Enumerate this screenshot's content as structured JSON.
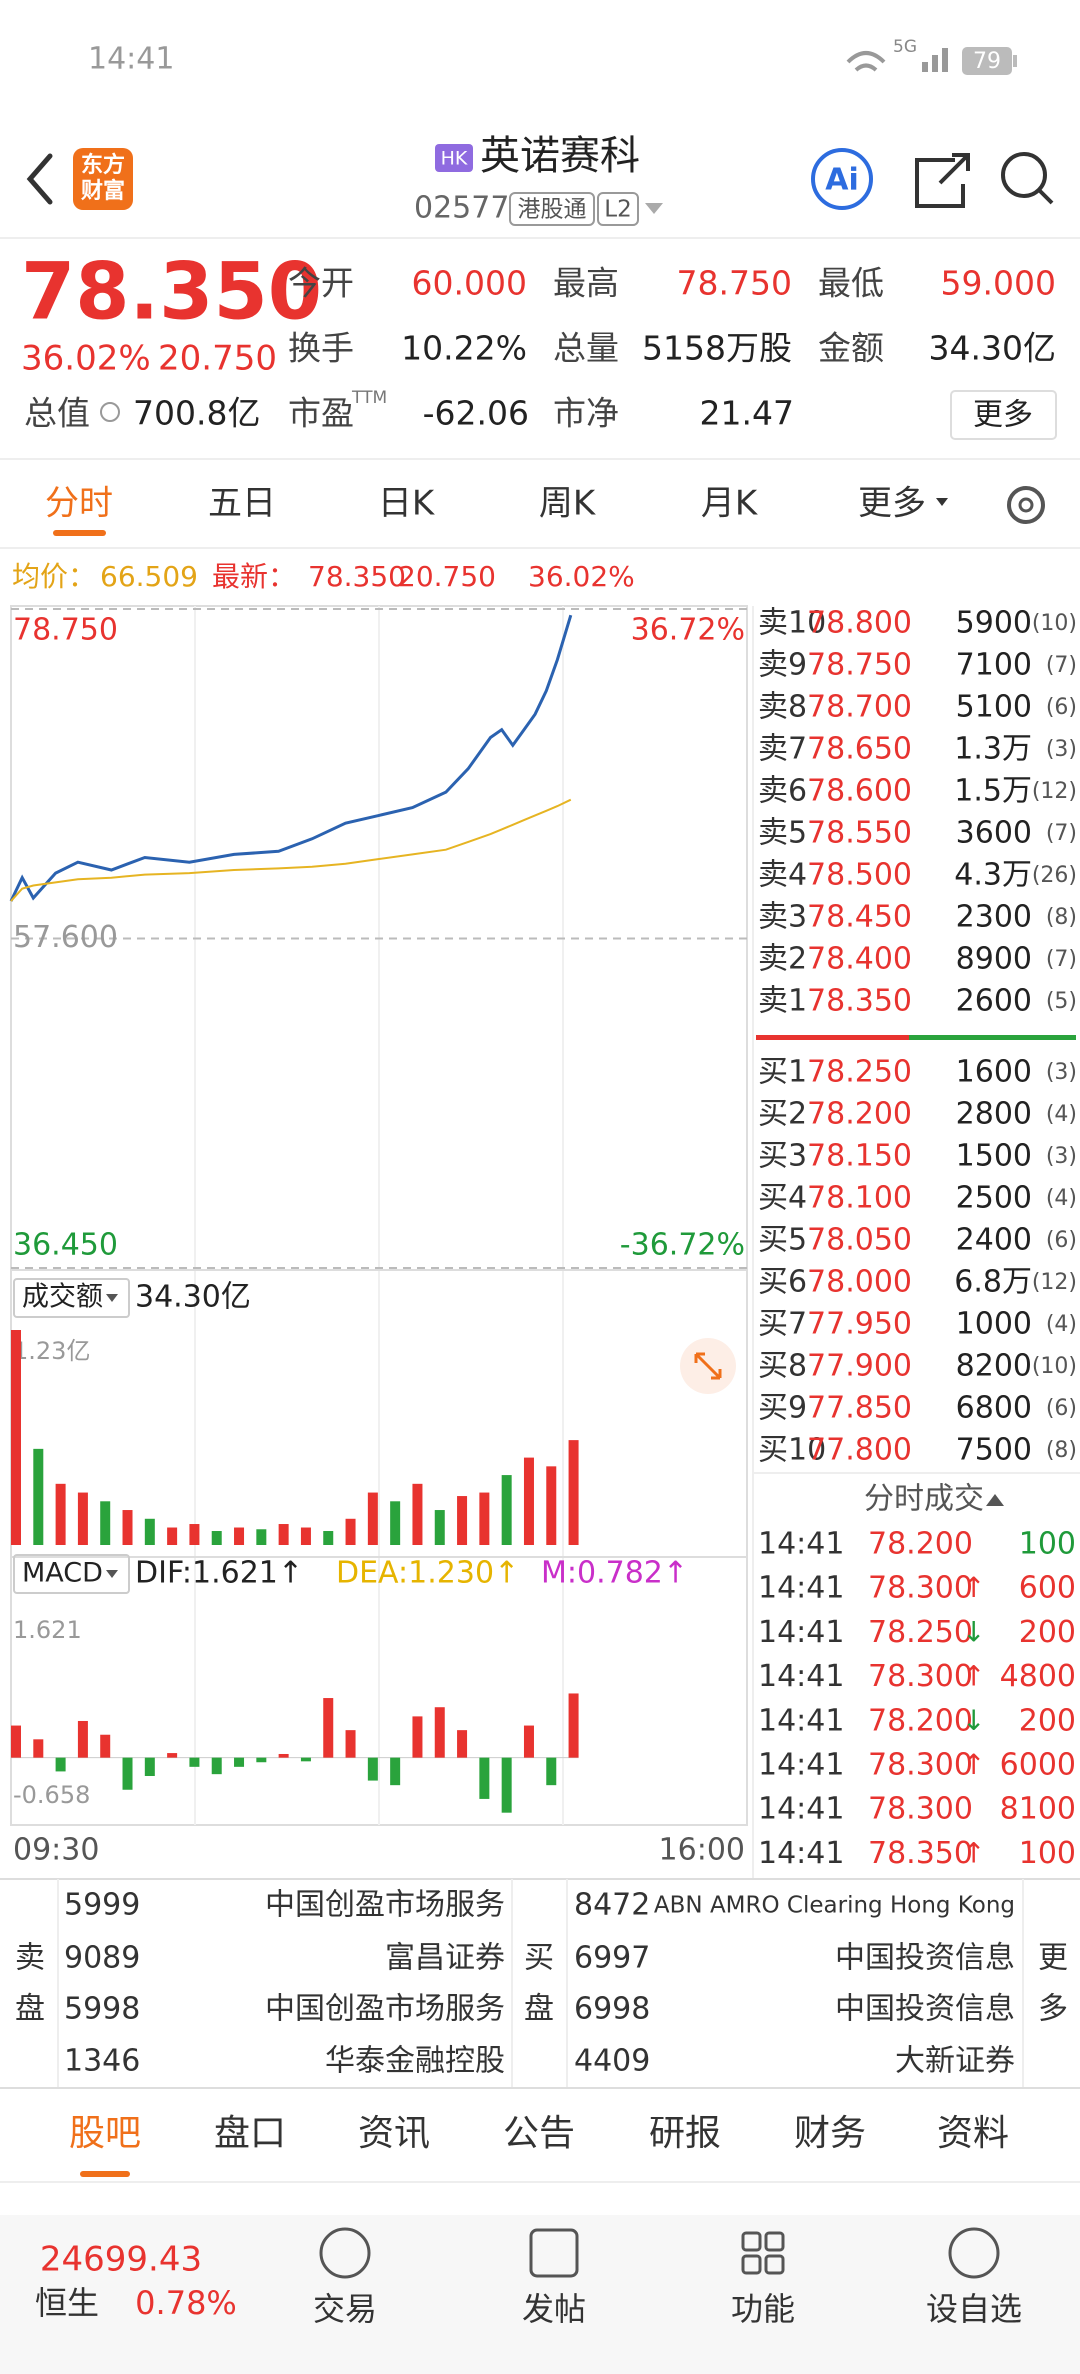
{
  "status": {
    "time": "14:41",
    "network": "5G",
    "battery": "79"
  },
  "header": {
    "logo": [
      "东方",
      "财富"
    ],
    "market": "HK",
    "name": "英诺赛科",
    "code": "02577",
    "connect": "港股通",
    "level": "L2",
    "ai": "Ai"
  },
  "quote": {
    "price": "78.350",
    "change_pct": "36.02%",
    "change": "20.750",
    "fields": [
      {
        "label": "今开",
        "value": "60.000"
      },
      {
        "label": "最高",
        "value": "78.750"
      },
      {
        "label": "最低",
        "value": "59.000"
      },
      {
        "label": "换手",
        "value": "10.22%"
      },
      {
        "label": "总量",
        "value": "5158万股"
      },
      {
        "label": "金额",
        "value": "34.30亿"
      },
      {
        "label": "总值",
        "value": "700.8亿"
      },
      {
        "label": "市盈",
        "value": "-62.06"
      },
      {
        "label": "市净",
        "value": "21.47"
      }
    ],
    "ttm": "TTM",
    "more": "更多"
  },
  "tabs": {
    "items": [
      "分时",
      "五日",
      "日K",
      "周K",
      "月K",
      "更多"
    ],
    "active": 0
  },
  "summary": {
    "avg_label": "均价：",
    "avg": "66.509",
    "latest_label": "最新：",
    "latest": "78.350",
    "change": "20.750",
    "change_pct": "36.02%"
  },
  "chart_data": [
    {
      "type": "line",
      "x": [
        "09:30",
        "09:35",
        "09:40",
        "09:50",
        "10:00",
        "10:15",
        "10:30",
        "10:50",
        "11:10",
        "11:30",
        "11:45",
        "13:00",
        "13:15",
        "13:30",
        "13:45",
        "13:55",
        "14:05",
        "14:10",
        "14:15",
        "14:20",
        "14:25",
        "14:30",
        "14:35",
        "14:41"
      ],
      "series": [
        {
          "color": "#2b62b0",
          "values": [
            60.0,
            61.5,
            60.2,
            61.8,
            62.5,
            62.0,
            62.8,
            62.5,
            63.0,
            63.2,
            64.0,
            65.0,
            65.5,
            66.0,
            67.0,
            68.5,
            70.5,
            71.0,
            70.0,
            71.0,
            72.0,
            73.5,
            75.5,
            78.35
          ]
        },
        {
          "color": "#e6b422",
          "values": [
            60.0,
            60.8,
            61.0,
            61.2,
            61.4,
            61.5,
            61.7,
            61.8,
            62.0,
            62.1,
            62.2,
            62.4,
            62.7,
            63.0,
            63.3,
            63.8,
            64.3,
            64.6,
            64.9,
            65.2,
            65.5,
            65.8,
            66.1,
            66.509
          ]
        }
      ],
      "xlim": [
        "09:30",
        "16:00"
      ],
      "xticks": [
        "09:30",
        "16:00"
      ],
      "ylim": [
        36.45,
        78.75
      ],
      "yticks": [
        {
          "value": 78.75,
          "label": "78.750"
        },
        {
          "value": 57.6,
          "label": "57.600"
        },
        {
          "value": 36.45,
          "label": "36.450"
        }
      ],
      "y2lim": [
        -36.72,
        36.72
      ],
      "y2ticks": [
        {
          "value": 36.72,
          "label": "36.72%"
        },
        {
          "value": -36.72,
          "label": "-36.72%"
        }
      ]
    },
    {
      "type": "bar",
      "title": "成交额",
      "total": "34.30亿",
      "x": [
        "09:30",
        "09:40",
        "09:50",
        "10:00",
        "10:10",
        "10:20",
        "10:30",
        "10:40",
        "10:50",
        "11:00",
        "11:10",
        "11:20",
        "11:30",
        "11:40",
        "11:50",
        "12:00",
        "13:10",
        "13:20",
        "13:30",
        "13:40",
        "13:50",
        "14:00",
        "14:10",
        "14:20",
        "14:30",
        "14:40"
      ],
      "values": [
        1.23,
        0.55,
        0.35,
        0.3,
        0.25,
        0.2,
        0.15,
        0.1,
        0.12,
        0.08,
        0.1,
        0.09,
        0.12,
        0.1,
        0.08,
        0.15,
        0.3,
        0.25,
        0.35,
        0.2,
        0.28,
        0.3,
        0.4,
        0.5,
        0.45,
        0.6
      ],
      "colors": [
        "#e8332f",
        "#2aa33c",
        "#e8332f",
        "#e8332f",
        "#2aa33c",
        "#e8332f",
        "#2aa33c",
        "#e8332f",
        "#e8332f",
        "#2aa33c",
        "#e8332f",
        "#2aa33c",
        "#e8332f",
        "#e8332f",
        "#2aa33c",
        "#e8332f",
        "#e8332f",
        "#2aa33c",
        "#e8332f",
        "#2aa33c",
        "#e8332f",
        "#e8332f",
        "#2aa33c",
        "#e8332f",
        "#e8332f",
        "#e8332f"
      ],
      "ylim": [
        0,
        1.23
      ],
      "yticks": [
        {
          "value": 1.23,
          "label": "1.23亿"
        }
      ]
    },
    {
      "type": "bar",
      "title": "MACD",
      "indicators": [
        {
          "label": "DIF:1.621↑",
          "color": "#222222"
        },
        {
          "label": "DEA:1.230↑",
          "color": "#e6b400"
        },
        {
          "label": "M:0.782↑",
          "color": "#c92fc9"
        }
      ],
      "x": [
        "09:30",
        "09:40",
        "09:50",
        "10:00",
        "10:10",
        "10:20",
        "10:30",
        "10:40",
        "10:50",
        "11:00",
        "11:10",
        "11:20",
        "11:30",
        "11:40",
        "11:50",
        "12:00",
        "13:10",
        "13:20",
        "13:30",
        "13:40",
        "13:50",
        "14:00",
        "14:10",
        "14:20",
        "14:30",
        "14:40"
      ],
      "values": [
        0.35,
        0.2,
        -0.15,
        0.4,
        0.25,
        -0.35,
        -0.2,
        0.05,
        -0.1,
        -0.18,
        -0.1,
        -0.05,
        0.04,
        -0.04,
        0.65,
        0.3,
        -0.25,
        -0.3,
        0.45,
        0.55,
        0.3,
        -0.45,
        -0.6,
        0.35,
        -0.3,
        0.7
      ],
      "color": "#e8332f",
      "negative_color": "#2aa33c",
      "ylim": [
        -0.658,
        1.621
      ],
      "yticks": [
        {
          "value": 1.621,
          "label": "1.621"
        },
        {
          "value": -0.658,
          "label": "-0.658"
        }
      ]
    }
  ],
  "order_book": {
    "asks": [
      {
        "label": "卖10",
        "price": "78.800",
        "volume": "5900",
        "count": "(10)"
      },
      {
        "label": "卖9",
        "price": "78.750",
        "volume": "7100",
        "count": "(7)"
      },
      {
        "label": "卖8",
        "price": "78.700",
        "volume": "5100",
        "count": "(6)"
      },
      {
        "label": "卖7",
        "price": "78.650",
        "volume": "1.3万",
        "count": "(3)"
      },
      {
        "label": "卖6",
        "price": "78.600",
        "volume": "1.5万",
        "count": "(12)"
      },
      {
        "label": "卖5",
        "price": "78.550",
        "volume": "3600",
        "count": "(7)"
      },
      {
        "label": "卖4",
        "price": "78.500",
        "volume": "4.3万",
        "count": "(26)"
      },
      {
        "label": "卖3",
        "price": "78.450",
        "volume": "2300",
        "count": "(8)"
      },
      {
        "label": "卖2",
        "price": "78.400",
        "volume": "8900",
        "count": "(7)"
      },
      {
        "label": "卖1",
        "price": "78.350",
        "volume": "2600",
        "count": "(5)"
      }
    ],
    "bids": [
      {
        "label": "买1",
        "price": "78.250",
        "volume": "1600",
        "count": "(3)"
      },
      {
        "label": "买2",
        "price": "78.200",
        "volume": "2800",
        "count": "(4)"
      },
      {
        "label": "买3",
        "price": "78.150",
        "volume": "1500",
        "count": "(3)"
      },
      {
        "label": "买4",
        "price": "78.100",
        "volume": "2500",
        "count": "(4)"
      },
      {
        "label": "买5",
        "price": "78.050",
        "volume": "2400",
        "count": "(6)"
      },
      {
        "label": "买6",
        "price": "78.000",
        "volume": "6.8万",
        "count": "(12)"
      },
      {
        "label": "买7",
        "price": "77.950",
        "volume": "1000",
        "count": "(4)"
      },
      {
        "label": "买8",
        "price": "77.900",
        "volume": "8200",
        "count": "(10)"
      },
      {
        "label": "买9",
        "price": "77.850",
        "volume": "6800",
        "count": "(6)"
      },
      {
        "label": "买10",
        "price": "77.800",
        "volume": "7500",
        "count": "(8)"
      }
    ]
  },
  "trades": {
    "title": "分时成交",
    "rows": [
      {
        "time": "14:41",
        "price": "78.200",
        "volume": "100",
        "volume_color": "#1f9a3a"
      },
      {
        "time": "14:41",
        "price": "78.300",
        "arrow": "↑",
        "arrow_color": "#e8332f",
        "volume": "600",
        "volume_color": "#e8332f"
      },
      {
        "time": "14:41",
        "price": "78.250",
        "arrow": "↓",
        "arrow_color": "#1f9a3a",
        "volume": "200",
        "volume_color": "#e8332f"
      },
      {
        "time": "14:41",
        "price": "78.300",
        "arrow": "↑",
        "arrow_color": "#e8332f",
        "volume": "4800",
        "volume_color": "#e8332f"
      },
      {
        "time": "14:41",
        "price": "78.200",
        "arrow": "↓",
        "arrow_color": "#1f9a3a",
        "volume": "200",
        "volume_color": "#e8332f"
      },
      {
        "time": "14:41",
        "price": "78.300",
        "arrow": "↑",
        "arrow_color": "#e8332f",
        "volume": "6000",
        "volume_color": "#e8332f"
      },
      {
        "time": "14:41",
        "price": "78.300",
        "volume": "8100",
        "volume_color": "#e8332f"
      },
      {
        "time": "14:41",
        "price": "78.350",
        "arrow": "↑",
        "arrow_color": "#e8332f",
        "volume": "100",
        "volume_color": "#e8332f"
      }
    ]
  },
  "brokers": {
    "sell_label": [
      "卖",
      "盘"
    ],
    "buy_label": [
      "买",
      "盘"
    ],
    "more": [
      "更",
      "多"
    ],
    "sell": [
      {
        "id": "5999",
        "name": "中国创盈市场服务"
      },
      {
        "id": "9089",
        "name": "富昌证券"
      },
      {
        "id": "5998",
        "name": "中国创盈市场服务"
      },
      {
        "id": "1346",
        "name": "华泰金融控股"
      }
    ],
    "buy": [
      {
        "id": "8472",
        "name": "ABN AMRO Clearing Hong Kong"
      },
      {
        "id": "6997",
        "name": "中国投资信息"
      },
      {
        "id": "6998",
        "name": "中国投资信息"
      },
      {
        "id": "4409",
        "name": "大新证券"
      }
    ]
  },
  "bottom_tabs": {
    "items": [
      "股吧",
      "盘口",
      "资讯",
      "公告",
      "研报",
      "财务",
      "资料"
    ],
    "active": 0
  },
  "footer": {
    "index_value": "24699.43",
    "index_name": "恒生",
    "index_change": "0.78%",
    "actions": [
      "交易",
      "发帖",
      "功能",
      "设自选"
    ]
  }
}
